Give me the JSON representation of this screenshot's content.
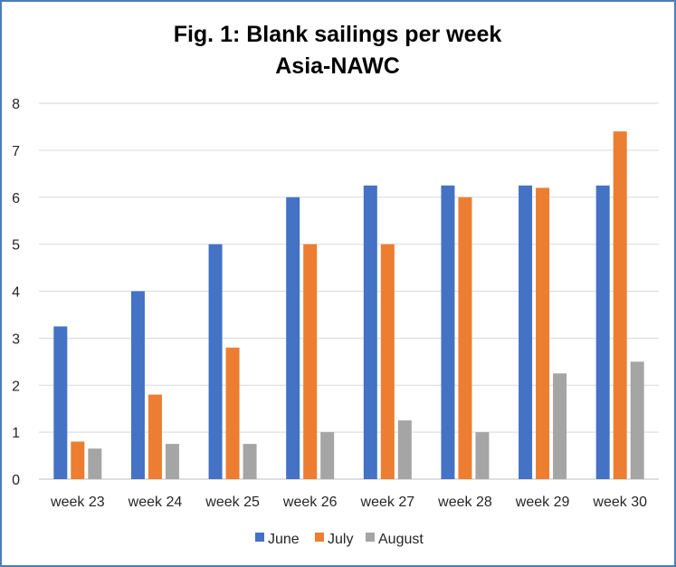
{
  "chart_data": {
    "type": "bar",
    "title": "Fig. 1: Blank sailings per week",
    "subtitle": "Asia-NAWC",
    "xlabel": "",
    "ylabel": "",
    "ylim": [
      0,
      8
    ],
    "yticks": [
      "0",
      "1",
      "2",
      "3",
      "4",
      "5",
      "6",
      "7",
      "8"
    ],
    "grid": true,
    "legend_position": "bottom",
    "categories": [
      "week 23",
      "week 24",
      "week 25",
      "week 26",
      "week 27",
      "week 28",
      "week 29",
      "week 30"
    ],
    "series": [
      {
        "name": "June",
        "color": "#4472c4",
        "values": [
          3.25,
          4,
          5,
          6,
          6.25,
          6.25,
          6.25,
          6.25
        ]
      },
      {
        "name": "July",
        "color": "#ed7d31",
        "values": [
          0.8,
          1.8,
          2.8,
          5,
          5,
          6,
          6.2,
          7.4
        ]
      },
      {
        "name": "August",
        "color": "#a5a5a5",
        "values": [
          0.65,
          0.75,
          0.75,
          1,
          1.25,
          1,
          2.25,
          2.5
        ]
      }
    ]
  }
}
